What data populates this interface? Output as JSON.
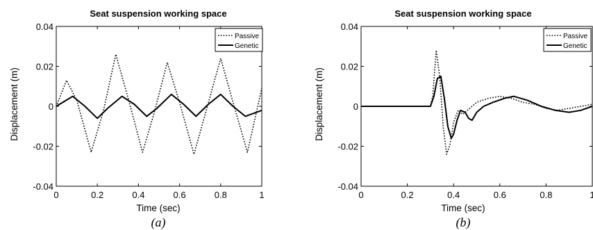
{
  "chart_data": [
    {
      "type": "line",
      "title": "Seat suspension working space",
      "xlabel": "Time (sec)",
      "ylabel": "Displacement (m)",
      "xlim": [
        0,
        1
      ],
      "ylim": [
        -0.04,
        0.04
      ],
      "xticks": [
        "0",
        "0.2",
        "0.4",
        "0.6",
        "0.8",
        "1"
      ],
      "yticks": [
        "0.04",
        "0.02",
        "0",
        "-0.02",
        "-0.04"
      ],
      "legend_position": "top-right",
      "caption": "(a)",
      "series": [
        {
          "name": "Passive",
          "style": "dotted",
          "x": [
            0,
            0.05,
            0.1,
            0.17,
            0.23,
            0.29,
            0.35,
            0.42,
            0.48,
            0.54,
            0.6,
            0.67,
            0.73,
            0.8,
            0.86,
            0.93,
            1.0
          ],
          "y": [
            0,
            0.013,
            0.003,
            -0.023,
            -0.002,
            0.026,
            0.004,
            -0.023,
            -0.002,
            0.022,
            0.002,
            -0.024,
            -0.002,
            0.024,
            0.002,
            -0.023,
            0.009
          ]
        },
        {
          "name": "Genetic",
          "style": "solid",
          "x": [
            0,
            0.08,
            0.14,
            0.2,
            0.25,
            0.32,
            0.38,
            0.44,
            0.49,
            0.56,
            0.62,
            0.68,
            0.74,
            0.8,
            0.86,
            0.92,
            1.0
          ],
          "y": [
            0,
            0.005,
            0.0,
            -0.006,
            -0.001,
            0.005,
            0.001,
            -0.005,
            -0.001,
            0.006,
            0.001,
            -0.005,
            0.001,
            0.006,
            0.0,
            -0.005,
            -0.002
          ]
        }
      ]
    },
    {
      "type": "line",
      "title": "Seat suspension working space",
      "xlabel": "Time (sec)",
      "ylabel": "Displacement (m)",
      "xlim": [
        0,
        1
      ],
      "ylim": [
        -0.04,
        0.04
      ],
      "xticks": [
        "0",
        "0.2",
        "0.4",
        "0.6",
        "0.8",
        "1"
      ],
      "yticks": [
        "0.04",
        "0.02",
        "0",
        "-0.02",
        "-0.04"
      ],
      "legend_position": "top-right",
      "caption": "(b)",
      "series": [
        {
          "name": "Passive",
          "style": "dotted",
          "x": [
            0,
            0.3,
            0.31,
            0.325,
            0.34,
            0.355,
            0.37,
            0.385,
            0.4,
            0.42,
            0.44,
            0.47,
            0.5,
            0.55,
            0.6,
            0.65,
            0.7,
            0.75,
            0.8,
            0.85,
            0.9,
            0.95,
            1.0
          ],
          "y": [
            0,
            0,
            0.005,
            0.028,
            0.015,
            -0.01,
            -0.024,
            -0.019,
            -0.008,
            -0.002,
            -0.004,
            -0.001,
            0.002,
            0.004,
            0.005,
            0.004,
            0.002,
            0.001,
            -0.001,
            -0.002,
            -0.001,
            0.0,
            0.001
          ]
        },
        {
          "name": "Genetic",
          "style": "solid",
          "x": [
            0,
            0.3,
            0.315,
            0.33,
            0.345,
            0.36,
            0.375,
            0.39,
            0.4,
            0.415,
            0.43,
            0.45,
            0.465,
            0.48,
            0.5,
            0.53,
            0.57,
            0.62,
            0.66,
            0.72,
            0.78,
            0.84,
            0.9,
            0.95,
            1.0
          ],
          "y": [
            0,
            0,
            0.005,
            0.014,
            0.015,
            0.004,
            -0.01,
            -0.016,
            -0.014,
            -0.007,
            -0.002,
            -0.003,
            -0.006,
            -0.007,
            -0.003,
            0.0,
            0.002,
            0.004,
            0.005,
            0.003,
            0.0,
            -0.002,
            -0.003,
            -0.002,
            0.0
          ]
        }
      ]
    }
  ]
}
